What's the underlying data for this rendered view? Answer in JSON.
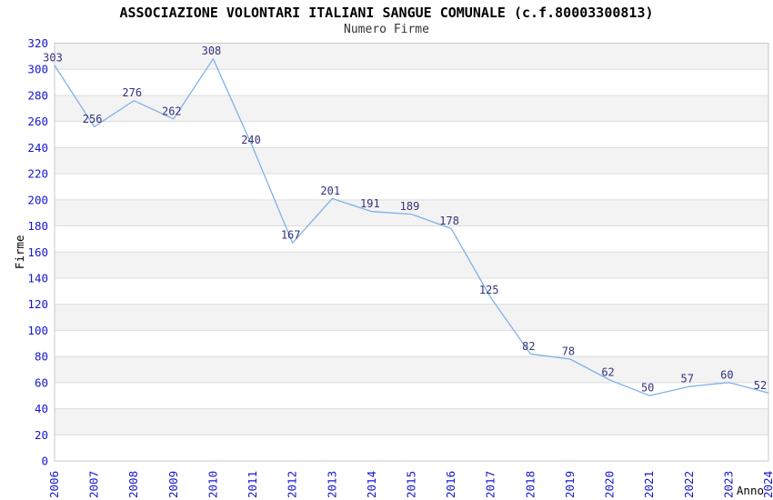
{
  "header": {
    "title": "ASSOCIAZIONE VOLONTARI ITALIANI SANGUE COMUNALE (c.f.80003300813)",
    "subtitle": "Numero Firme"
  },
  "chart_data": {
    "type": "line",
    "title": "ASSOCIAZIONE VOLONTARI ITALIANI SANGUE COMUNALE (c.f.80003300813)",
    "subtitle": "Numero Firme",
    "xlabel": "Anno",
    "ylabel": "Firme",
    "categories": [
      "2006",
      "2007",
      "2008",
      "2009",
      "2010",
      "2011",
      "2012",
      "2013",
      "2014",
      "2015",
      "2016",
      "2017",
      "2018",
      "2019",
      "2020",
      "2021",
      "2022",
      "2023",
      "2024"
    ],
    "values": [
      303,
      256,
      276,
      262,
      308,
      240,
      167,
      201,
      191,
      189,
      178,
      125,
      82,
      78,
      62,
      50,
      57,
      60,
      52
    ],
    "ylim": [
      0,
      320
    ],
    "ytick_step": 20,
    "grid": true,
    "legend": false,
    "band_pattern": "alternating-gray-from-top",
    "data_labels": true,
    "colors": {
      "line": "#7FB1E8",
      "point_label": "#33337E",
      "tick_label": "#1616CE",
      "axis_title": "#000000",
      "band": "#F3F3F3",
      "gridline": "#DCDCDC",
      "frame": "#C8C8C8",
      "plot_background": "#FFFFFF"
    }
  }
}
